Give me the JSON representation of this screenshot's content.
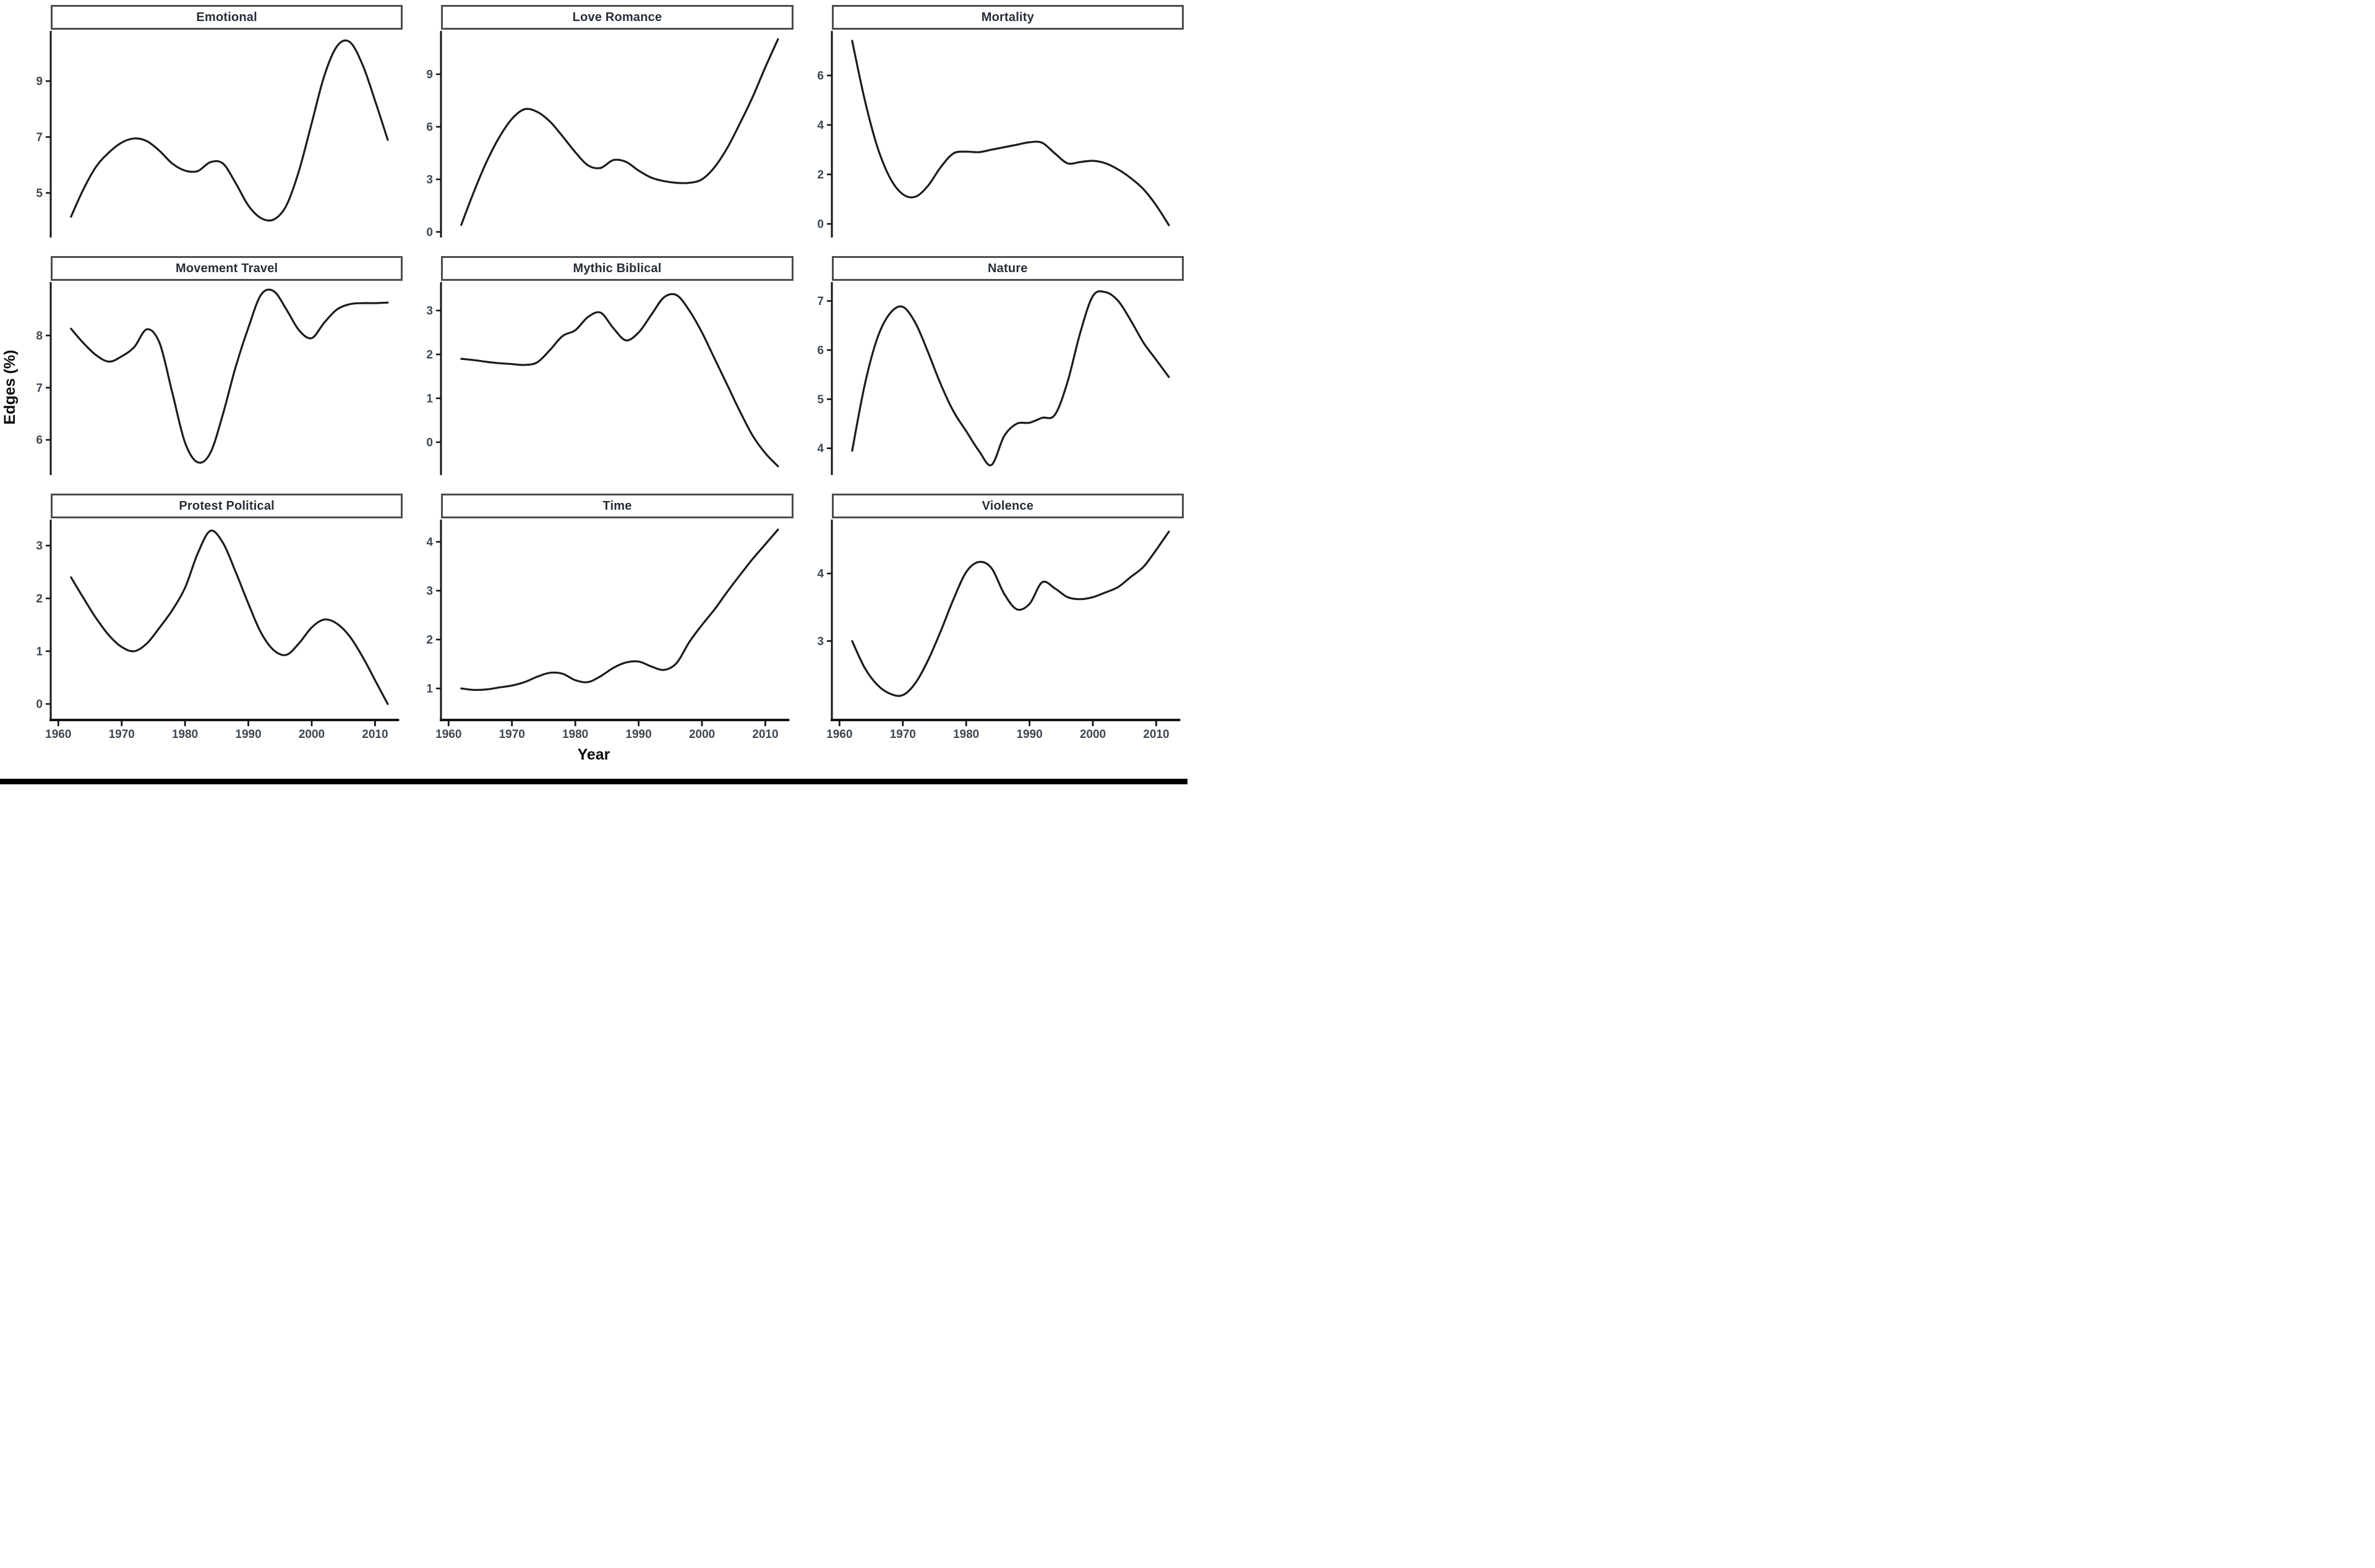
{
  "figure": {
    "x_axis_label": "Year",
    "y_axis_label": "Edges (%)",
    "x_ticks": [
      1960,
      1970,
      1980,
      1990,
      2000,
      2010
    ],
    "x_range": [
      1958.8,
      2013.8
    ],
    "colors": {
      "line": "#1c1c1c",
      "axis": "#141414",
      "tick_text": "#3d4852",
      "strip_border": "#4d4d4d",
      "strip_text": "#262e38",
      "strip_bg": "#ffffff",
      "footer_bar": "#000000"
    }
  },
  "chart_data": [
    {
      "type": "line",
      "title": "Emotional",
      "x": [
        1962,
        1964,
        1966,
        1968,
        1970,
        1972,
        1974,
        1976,
        1978,
        1980,
        1982,
        1984,
        1986,
        1988,
        1990,
        1992,
        1994,
        1996,
        1998,
        2000,
        2002,
        2004,
        2006,
        2008,
        2010,
        2012
      ],
      "y": [
        4.15,
        5.15,
        5.95,
        6.45,
        6.8,
        6.95,
        6.85,
        6.5,
        6.05,
        5.8,
        5.78,
        6.1,
        6.05,
        5.35,
        4.55,
        4.1,
        4.05,
        4.55,
        5.8,
        7.5,
        9.2,
        10.25,
        10.4,
        9.6,
        8.3,
        6.9
      ],
      "ylim": [
        3.45,
        10.75
      ],
      "yticks": [
        5,
        7,
        9
      ]
    },
    {
      "type": "line",
      "title": "Love Romance",
      "x": [
        1962,
        1964,
        1966,
        1968,
        1970,
        1972,
        1974,
        1976,
        1978,
        1980,
        1982,
        1984,
        1986,
        1988,
        1990,
        1992,
        1994,
        1996,
        1998,
        2000,
        2002,
        2004,
        2006,
        2008,
        2010,
        2012
      ],
      "y": [
        0.4,
        2.3,
        4.0,
        5.4,
        6.45,
        7.0,
        6.85,
        6.3,
        5.45,
        4.55,
        3.8,
        3.65,
        4.1,
        4.0,
        3.5,
        3.1,
        2.9,
        2.8,
        2.8,
        3.0,
        3.7,
        4.8,
        6.2,
        7.7,
        9.4,
        11.0
      ],
      "ylim": [
        -0.25,
        11.4
      ],
      "yticks": [
        0,
        3,
        6,
        9
      ]
    },
    {
      "type": "line",
      "title": "Mortality",
      "x": [
        1962,
        1964,
        1966,
        1968,
        1970,
        1972,
        1974,
        1976,
        1978,
        1980,
        1982,
        1984,
        1986,
        1988,
        1990,
        1992,
        1994,
        1996,
        1998,
        2000,
        2002,
        2004,
        2006,
        2008,
        2010,
        2012
      ],
      "y": [
        7.4,
        5.0,
        3.1,
        1.85,
        1.2,
        1.1,
        1.55,
        2.3,
        2.85,
        2.92,
        2.9,
        3.0,
        3.1,
        3.2,
        3.3,
        3.28,
        2.85,
        2.45,
        2.5,
        2.55,
        2.45,
        2.2,
        1.85,
        1.4,
        0.75,
        -0.05
      ],
      "ylim": [
        -0.5,
        7.75
      ],
      "yticks": [
        0,
        2,
        4,
        6
      ]
    },
    {
      "type": "line",
      "title": "Movement Travel",
      "x": [
        1962,
        1964,
        1966,
        1968,
        1970,
        1972,
        1974,
        1976,
        1978,
        1980,
        1982,
        1984,
        1986,
        1988,
        1990,
        1992,
        1994,
        1996,
        1998,
        2000,
        2002,
        2004,
        2006,
        2008,
        2010,
        2012
      ],
      "y": [
        8.13,
        7.85,
        7.62,
        7.5,
        7.6,
        7.78,
        8.12,
        7.85,
        6.9,
        5.95,
        5.57,
        5.75,
        6.5,
        7.4,
        8.15,
        8.78,
        8.85,
        8.5,
        8.1,
        7.95,
        8.25,
        8.5,
        8.6,
        8.62,
        8.62,
        8.63
      ],
      "ylim": [
        5.35,
        9.0
      ],
      "yticks": [
        6,
        7,
        8
      ]
    },
    {
      "type": "line",
      "title": "Mythic Biblical",
      "x": [
        1962,
        1964,
        1966,
        1968,
        1970,
        1972,
        1974,
        1976,
        1978,
        1980,
        1982,
        1984,
        1986,
        1988,
        1990,
        1992,
        1994,
        1996,
        1998,
        2000,
        2002,
        2004,
        2006,
        2008,
        2010,
        2012
      ],
      "y": [
        1.9,
        1.87,
        1.83,
        1.8,
        1.78,
        1.76,
        1.82,
        2.1,
        2.42,
        2.55,
        2.85,
        2.95,
        2.6,
        2.32,
        2.5,
        2.9,
        3.3,
        3.35,
        3.0,
        2.5,
        1.9,
        1.3,
        0.7,
        0.15,
        -0.25,
        -0.55
      ],
      "ylim": [
        -0.72,
        3.62
      ],
      "yticks": [
        0,
        1,
        2,
        3
      ]
    },
    {
      "type": "line",
      "title": "Nature",
      "x": [
        1962,
        1964,
        1966,
        1968,
        1970,
        1972,
        1974,
        1976,
        1978,
        1980,
        1982,
        1984,
        1986,
        1988,
        1990,
        1992,
        1994,
        1996,
        1998,
        2000,
        2002,
        2004,
        2006,
        2008,
        2010,
        2012
      ],
      "y": [
        3.95,
        5.3,
        6.25,
        6.75,
        6.88,
        6.55,
        5.95,
        5.3,
        4.75,
        4.35,
        3.95,
        3.66,
        4.25,
        4.5,
        4.52,
        4.62,
        4.68,
        5.35,
        6.35,
        7.1,
        7.18,
        7.0,
        6.6,
        6.15,
        5.8,
        5.45
      ],
      "ylim": [
        3.48,
        7.36
      ],
      "yticks": [
        4,
        5,
        6,
        7
      ]
    },
    {
      "type": "line",
      "title": "Protest Political",
      "x": [
        1962,
        1964,
        1966,
        1968,
        1970,
        1972,
        1974,
        1976,
        1978,
        1980,
        1982,
        1984,
        1986,
        1988,
        1990,
        1992,
        1994,
        1996,
        1998,
        2000,
        2002,
        2004,
        2006,
        2008,
        2010,
        2012
      ],
      "y": [
        2.4,
        2.0,
        1.62,
        1.3,
        1.08,
        1.0,
        1.15,
        1.45,
        1.78,
        2.2,
        2.85,
        3.28,
        3.05,
        2.5,
        1.9,
        1.35,
        1.02,
        0.93,
        1.15,
        1.45,
        1.6,
        1.52,
        1.28,
        0.9,
        0.45,
        0.0
      ],
      "ylim": [
        -0.28,
        3.47
      ],
      "yticks": [
        0,
        1,
        2,
        3
      ]
    },
    {
      "type": "line",
      "title": "Time",
      "x": [
        1962,
        1964,
        1966,
        1968,
        1970,
        1972,
        1974,
        1976,
        1978,
        1980,
        1982,
        1984,
        1986,
        1988,
        1990,
        1992,
        1994,
        1996,
        1998,
        2000,
        2002,
        2004,
        2006,
        2008,
        2010,
        2012
      ],
      "y": [
        1.0,
        0.97,
        0.98,
        1.02,
        1.06,
        1.13,
        1.24,
        1.32,
        1.3,
        1.17,
        1.13,
        1.25,
        1.42,
        1.53,
        1.55,
        1.45,
        1.38,
        1.52,
        1.95,
        2.3,
        2.62,
        2.98,
        3.32,
        3.65,
        3.95,
        4.25
      ],
      "ylim": [
        0.38,
        4.43
      ],
      "yticks": [
        1,
        2,
        3,
        4
      ]
    },
    {
      "type": "line",
      "title": "Violence",
      "x": [
        1962,
        1964,
        1966,
        1968,
        1970,
        1972,
        1974,
        1976,
        1978,
        1980,
        1982,
        1984,
        1986,
        1988,
        1990,
        1992,
        1994,
        1996,
        1998,
        2000,
        2002,
        2004,
        2006,
        2008,
        2010,
        2012
      ],
      "y": [
        3.0,
        2.6,
        2.35,
        2.22,
        2.2,
        2.38,
        2.72,
        3.15,
        3.62,
        4.02,
        4.17,
        4.08,
        3.7,
        3.47,
        3.55,
        3.87,
        3.78,
        3.65,
        3.62,
        3.65,
        3.72,
        3.8,
        3.95,
        4.1,
        4.35,
        4.62
      ],
      "ylim": [
        1.85,
        4.78
      ],
      "yticks": [
        3,
        4
      ]
    }
  ]
}
